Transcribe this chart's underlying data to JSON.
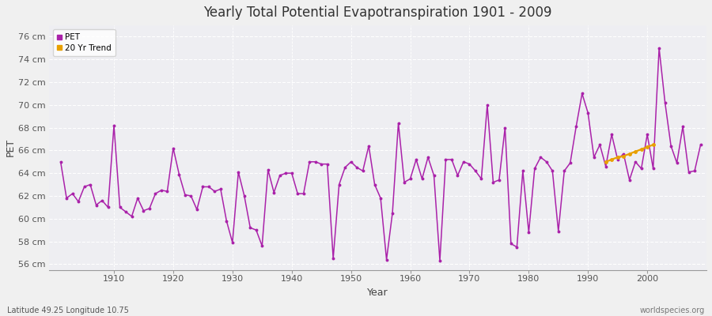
{
  "title": "Yearly Total Potential Evapotranspiration 1901 - 2009",
  "ylabel": "PET",
  "xlabel": "Year",
  "subtitle_left": "Latitude 49.25 Longitude 10.75",
  "subtitle_right": "worldspecies.org",
  "pet_color": "#aa22aa",
  "trend_color": "#e8a000",
  "plot_bg_color": "#eeeef2",
  "fig_bg_color": "#f0f0f0",
  "grid_color": "#ffffff",
  "ylim": [
    55.5,
    77.0
  ],
  "yticks": [
    56,
    58,
    60,
    62,
    64,
    66,
    68,
    70,
    72,
    74,
    76
  ],
  "ytick_labels": [
    "56 cm",
    "58 cm",
    "60 cm",
    "62 cm",
    "64 cm",
    "66 cm",
    "68 cm",
    "70 cm",
    "72 cm",
    "74 cm",
    "76 cm"
  ],
  "xlim": [
    1899,
    2010
  ],
  "xticks": [
    1910,
    1920,
    1930,
    1940,
    1950,
    1960,
    1970,
    1980,
    1990,
    2000
  ],
  "years": [
    1901,
    1902,
    1903,
    1904,
    1905,
    1906,
    1907,
    1908,
    1909,
    1910,
    1911,
    1912,
    1913,
    1914,
    1915,
    1916,
    1917,
    1918,
    1919,
    1920,
    1921,
    1922,
    1923,
    1924,
    1925,
    1926,
    1927,
    1928,
    1929,
    1930,
    1931,
    1932,
    1933,
    1934,
    1935,
    1936,
    1937,
    1938,
    1939,
    1940,
    1941,
    1942,
    1943,
    1944,
    1945,
    1946,
    1947,
    1948,
    1949,
    1950,
    1951,
    1952,
    1953,
    1954,
    1955,
    1956,
    1957,
    1958,
    1959,
    1960,
    1961,
    1962,
    1963,
    1964,
    1965,
    1966,
    1967,
    1968,
    1969,
    1970,
    1971,
    1972,
    1973,
    1974,
    1975,
    1976,
    1977,
    1978,
    1979,
    1980,
    1981,
    1982,
    1983,
    1984,
    1985,
    1986,
    1987,
    1988,
    1989,
    1990,
    1991,
    1992,
    1993,
    1994,
    1995,
    1996,
    1997,
    1998,
    1999,
    2000,
    2001,
    2002,
    2003,
    2004,
    2005,
    2006,
    2007,
    2008,
    2009
  ],
  "pet_values": [
    65.0,
    61.8,
    62.2,
    61.5,
    62.8,
    63.0,
    61.2,
    61.6,
    61.0,
    68.2,
    61.0,
    60.6,
    60.2,
    61.8,
    60.7,
    60.9,
    62.2,
    62.5,
    62.4,
    66.2,
    63.9,
    62.1,
    62.0,
    60.8,
    62.8,
    62.8,
    62.4,
    62.6,
    59.8,
    57.9,
    64.1,
    62.0,
    59.2,
    59.0,
    57.6,
    64.3,
    62.3,
    63.8,
    64.0,
    64.0,
    62.2,
    62.2,
    65.0,
    65.0,
    64.8,
    64.8,
    56.5,
    63.0,
    64.5,
    65.0,
    64.5,
    64.2,
    66.4,
    63.0,
    61.8,
    56.4,
    60.5,
    68.4,
    63.2,
    63.5,
    65.2,
    63.5,
    65.4,
    63.8,
    56.3,
    65.2,
    65.2,
    63.8,
    65.0,
    64.8,
    64.2,
    63.5,
    70.0,
    63.2,
    63.4,
    68.0,
    57.8,
    57.5,
    64.2,
    58.8,
    64.4,
    65.4,
    65.0,
    64.2,
    58.9,
    64.2,
    64.9,
    68.1,
    71.0,
    69.3,
    65.4,
    66.5,
    64.6,
    67.4,
    65.2,
    65.7,
    63.4,
    65.0,
    64.4,
    67.4,
    64.4,
    75.0,
    70.2,
    66.4,
    64.9,
    68.1,
    64.1,
    64.2,
    66.5
  ],
  "trend_years": [
    1993,
    1994,
    1995,
    1996,
    1997,
    1998,
    1999,
    2000,
    2001
  ],
  "trend_values": [
    65.0,
    65.2,
    65.4,
    65.5,
    65.7,
    65.9,
    66.1,
    66.3,
    66.5
  ]
}
